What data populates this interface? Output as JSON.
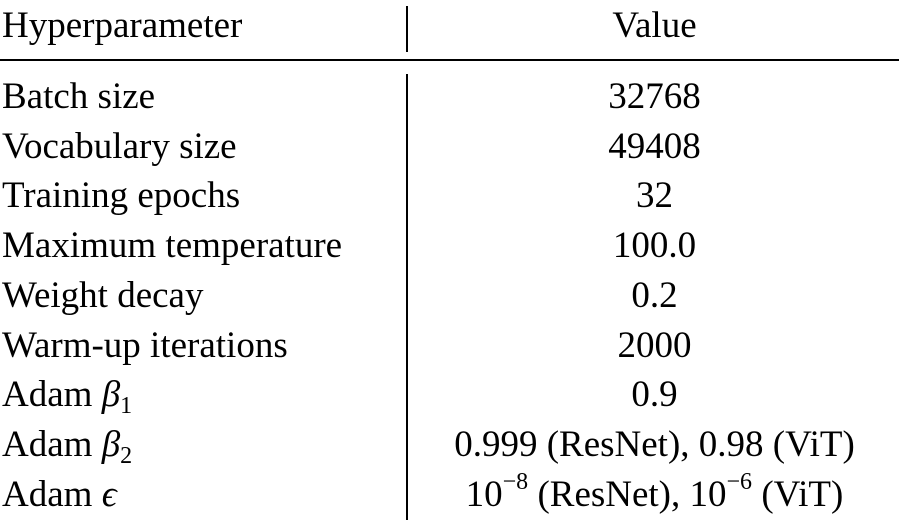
{
  "table": {
    "header": {
      "col1": "Hyperparameter",
      "col2": "Value"
    },
    "rows": [
      {
        "name": "Batch size",
        "value": "32768"
      },
      {
        "name": "Vocabulary size",
        "value": "49408"
      },
      {
        "name": "Training epochs",
        "value": "32"
      },
      {
        "name": "Maximum temperature",
        "value": "100.0"
      },
      {
        "name": "Weight decay",
        "value": "0.2"
      },
      {
        "name": "Warm-up iterations",
        "value": "2000"
      },
      {
        "name_prefix": "Adam",
        "symbol": "β",
        "subscript": "1",
        "value": "0.9"
      },
      {
        "name_prefix": "Adam",
        "symbol": "β",
        "subscript": "2",
        "value": "0.999 (ResNet), 0.98 (ViT)"
      },
      {
        "name_prefix": "Adam",
        "symbol": "ϵ",
        "value_a_base": "10",
        "value_a_exp": "−8",
        "value_a_suffix": " (ResNet), ",
        "value_b_base": "10",
        "value_b_exp": "−6",
        "value_b_suffix": " (ViT)"
      }
    ]
  }
}
